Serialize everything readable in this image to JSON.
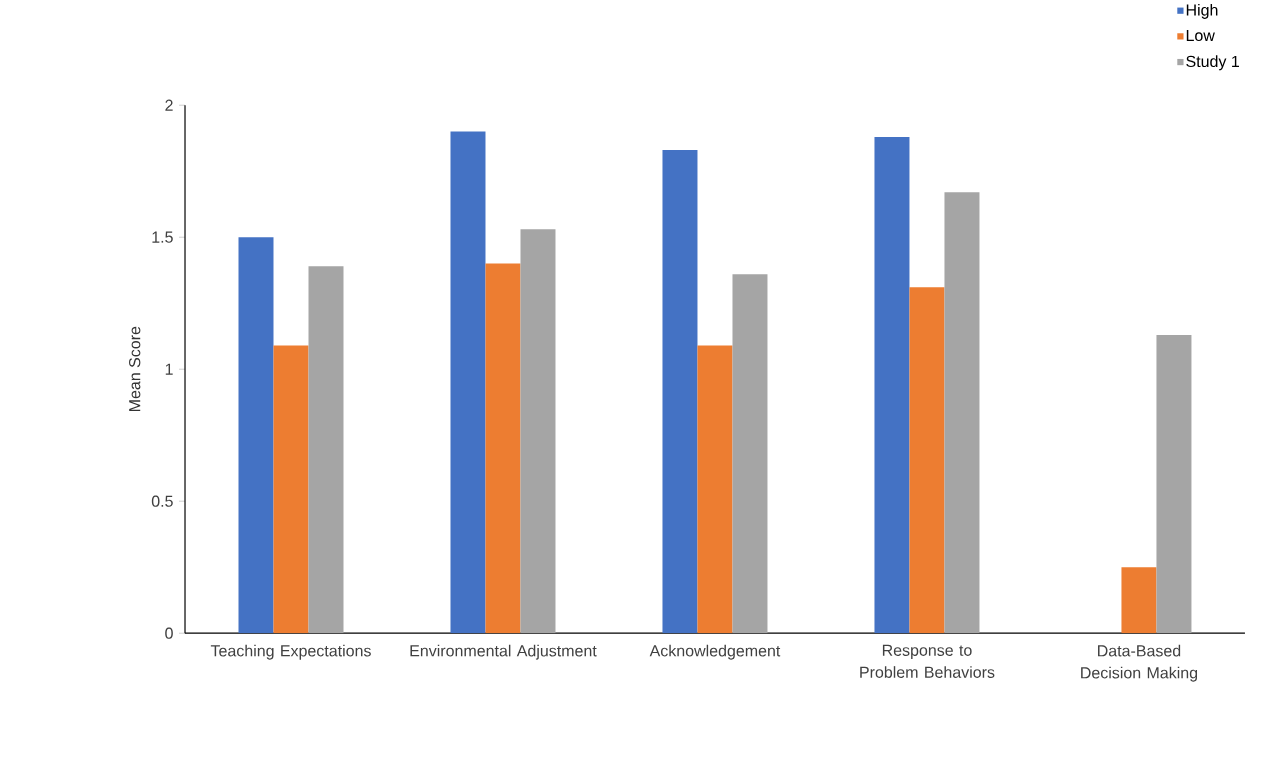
{
  "chart_data": {
    "type": "bar",
    "ylabel": "Mean Score",
    "categories": [
      "Teaching Expectations",
      "Environmental Adjustment",
      "Acknowledgement",
      "Response to Problem Behaviors",
      "Data-Based Decision Making"
    ],
    "series": [
      {
        "name": "High",
        "color": "#4472c4",
        "values": [
          1.5,
          1.9,
          1.83,
          1.88,
          null
        ]
      },
      {
        "name": "Low",
        "color": "#ed7d31",
        "values": [
          1.09,
          1.4,
          1.09,
          1.31,
          0.25
        ]
      },
      {
        "name": "Study 1",
        "color": "#a5a5a5",
        "values": [
          1.39,
          1.53,
          1.36,
          1.67,
          1.13
        ]
      }
    ],
    "ylim": [
      0,
      2
    ],
    "yticks": [
      0,
      0.5,
      1,
      1.5,
      2
    ],
    "legend": "top right",
    "grid": false
  }
}
